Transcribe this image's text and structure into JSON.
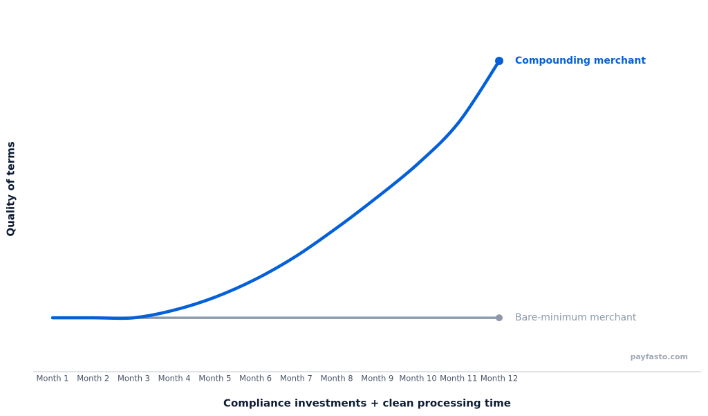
{
  "chart_data": {
    "type": "line",
    "x_label": "Compliance investments + clean processing time",
    "y_label": "Quality of terms",
    "watermark": "payfasto.com",
    "categories": [
      "Month 1",
      "Month 2",
      "Month 3",
      "Month 4",
      "Month 5",
      "Month 6",
      "Month 7",
      "Month 8",
      "Month 9",
      "Month 10",
      "Month 11",
      "Month 12"
    ],
    "series": [
      {
        "name": "Bare-minimum merchant",
        "color": "#8d9aab",
        "values": [
          0,
          0,
          0,
          0,
          0,
          0,
          0,
          0,
          0,
          0,
          0,
          0
        ]
      },
      {
        "name": "Compounding merchant",
        "color": "#0460d9",
        "values": [
          0,
          0,
          0,
          3,
          8,
          15,
          24,
          35,
          47,
          60,
          76,
          100
        ]
      }
    ],
    "ylim": [
      -21,
      100
    ]
  }
}
